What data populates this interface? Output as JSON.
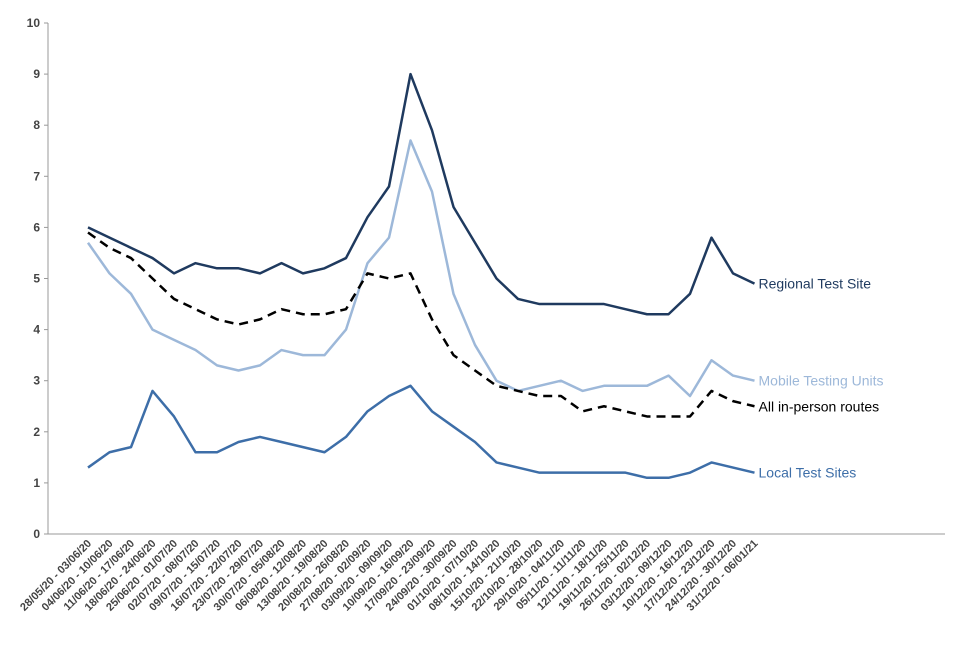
{
  "chart_data": {
    "type": "line",
    "categories": [
      "28/05/20 - 03/06/20",
      "04/06/20 - 10/06/20",
      "11/06/20 - 17/06/20",
      "18/06/20 - 24/06/20",
      "25/06/20 - 01/07/20",
      "02/07/20 - 08/07/20",
      "09/07/20 - 15/07/20",
      "16/07/20 - 22/07/20",
      "23/07/20 - 29/07/20",
      "30/07/20 - 05/08/20",
      "06/08/20 - 12/08/20",
      "13/08/20 - 19/08/20",
      "20/08/20 - 26/08/20",
      "27/08/20 - 02/09/20",
      "03/09/20 - 09/09/20",
      "10/09/20 - 16/09/20",
      "17/09/20 - 23/09/20",
      "24/09/20 - 30/09/20",
      "01/10/20 - 07/10/20",
      "08/10/20 - 14/10/20",
      "15/10/20 - 21/10/20",
      "22/10/20 - 28/10/20",
      "29/10/20 - 04/11/20",
      "05/11/20 - 11/11/20",
      "12/11/20 - 18/11/20",
      "19/11/20 - 25/11/20",
      "26/11/20 - 02/12/20",
      "03/12/20 - 09/12/20",
      "10/12/20 - 16/12/20",
      "17/12/20 - 23/12/20",
      "24/12/20 - 30/12/20",
      "31/12/20 - 06/01/21"
    ],
    "series": [
      {
        "name": "Regional Test Site",
        "color": "#1f3a5f",
        "values": [
          6.0,
          5.8,
          5.6,
          5.4,
          5.1,
          5.3,
          5.2,
          5.2,
          5.1,
          5.3,
          5.1,
          5.2,
          5.4,
          6.2,
          6.8,
          9.0,
          7.9,
          6.4,
          5.7,
          5.0,
          4.6,
          4.5,
          4.5,
          4.5,
          4.5,
          4.4,
          4.3,
          4.3,
          4.7,
          5.8,
          5.1,
          4.9
        ]
      },
      {
        "name": "Mobile Testing Units",
        "color": "#9db8d9",
        "values": [
          5.7,
          5.1,
          4.7,
          4.0,
          3.8,
          3.6,
          3.3,
          3.2,
          3.3,
          3.6,
          3.5,
          3.5,
          4.0,
          5.3,
          5.8,
          7.7,
          6.7,
          4.7,
          3.7,
          3.0,
          2.8,
          2.9,
          3.0,
          2.8,
          2.9,
          2.9,
          2.9,
          3.1,
          2.7,
          3.4,
          3.1,
          3.0
        ]
      },
      {
        "name": "All in-person routes",
        "color": "#000000",
        "dashed": true,
        "values": [
          5.9,
          5.6,
          5.4,
          5.0,
          4.6,
          4.4,
          4.2,
          4.1,
          4.2,
          4.4,
          4.3,
          4.3,
          4.4,
          5.1,
          5.0,
          5.1,
          4.2,
          3.5,
          3.2,
          2.9,
          2.8,
          2.7,
          2.7,
          2.4,
          2.5,
          2.4,
          2.3,
          2.3,
          2.3,
          2.8,
          2.6,
          2.5
        ]
      },
      {
        "name": "Local Test Sites",
        "color": "#3d6ea8",
        "values": [
          1.3,
          1.6,
          1.7,
          2.8,
          2.3,
          1.6,
          1.6,
          1.8,
          1.9,
          1.8,
          1.7,
          1.6,
          1.9,
          2.4,
          2.7,
          2.9,
          2.4,
          2.1,
          1.8,
          1.4,
          1.3,
          1.2,
          1.2,
          1.2,
          1.2,
          1.2,
          1.1,
          1.1,
          1.2,
          1.4,
          1.3,
          1.2
        ]
      }
    ],
    "ylim": [
      0,
      10
    ],
    "yticks": [
      0,
      1,
      2,
      3,
      4,
      5,
      6,
      7,
      8,
      9,
      10
    ],
    "grid": false
  }
}
